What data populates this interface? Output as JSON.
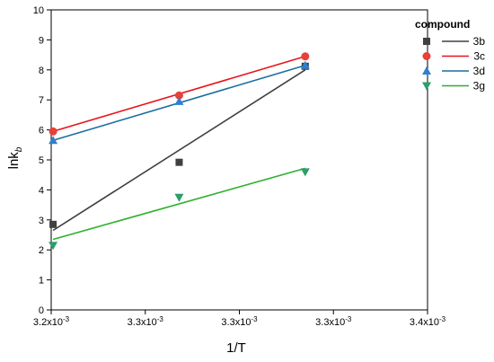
{
  "chart_data": {
    "type": "scatter",
    "xlabel": "1/T",
    "ylabel": "lnk",
    "ylabel_subscript": "b",
    "xlim": [
      0.0032,
      0.0034
    ],
    "ylim": [
      0,
      10
    ],
    "x_tick_values": [
      0.0032,
      0.00325,
      0.0033,
      0.00335,
      0.0034
    ],
    "x_tick_labels": [
      {
        "base": "3.2x10",
        "exp": "-3"
      },
      {
        "base": "3.3x10",
        "exp": "-3"
      },
      {
        "base": "3.3x10",
        "exp": "-3"
      },
      {
        "base": "3.3x10",
        "exp": "-3"
      },
      {
        "base": "3.4x10",
        "exp": "-3"
      }
    ],
    "y_ticks": [
      0,
      1,
      2,
      3,
      4,
      5,
      6,
      7,
      8,
      9,
      10
    ],
    "legend_title": "compound",
    "legend_position": "top-right",
    "series": [
      {
        "name": "3b",
        "marker": "square",
        "color": "#404040",
        "line_color": "#404040",
        "x": [
          0.003201,
          0.003268,
          0.003335
        ],
        "y": [
          2.85,
          4.92,
          8.12
        ],
        "fit": {
          "x": [
            0.003201,
            0.003335
          ],
          "y": [
            2.65,
            8.0
          ]
        }
      },
      {
        "name": "3c",
        "marker": "circle",
        "color": "#e8403a",
        "line_color": "#e8131b",
        "x": [
          0.003201,
          0.003268,
          0.003335
        ],
        "y": [
          5.95,
          7.15,
          8.45
        ],
        "fit": {
          "x": [
            0.003201,
            0.003335
          ],
          "y": [
            5.95,
            8.45
          ]
        }
      },
      {
        "name": "3d",
        "marker": "triangle-up",
        "color": "#2f7fd0",
        "line_color": "#1a6fa0",
        "x": [
          0.003201,
          0.003268,
          0.003335
        ],
        "y": [
          5.65,
          6.95,
          8.15
        ],
        "fit": {
          "x": [
            0.003201,
            0.003335
          ],
          "y": [
            5.65,
            8.15
          ]
        }
      },
      {
        "name": "3g",
        "marker": "triangle-down",
        "color": "#2e9e6a",
        "line_color": "#2cb02c",
        "x": [
          0.003201,
          0.003268,
          0.003335
        ],
        "y": [
          2.15,
          3.75,
          4.6
        ],
        "fit": {
          "x": [
            0.003201,
            0.003335
          ],
          "y": [
            2.35,
            4.72
          ]
        }
      }
    ]
  }
}
